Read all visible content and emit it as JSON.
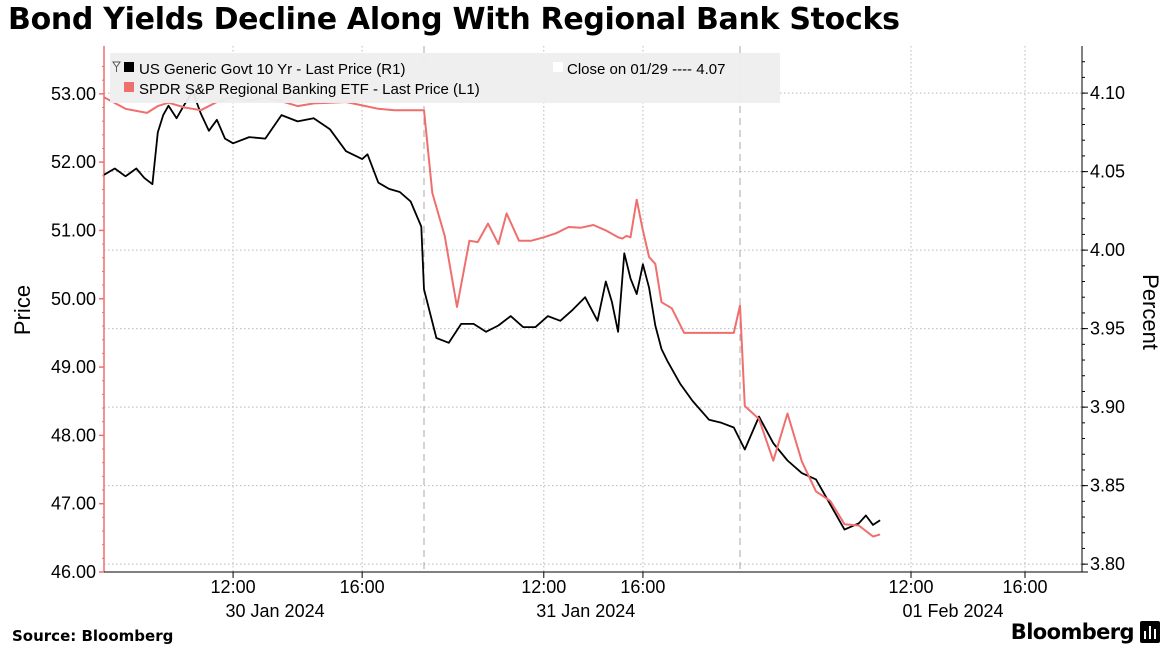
{
  "header": {
    "title": "Bond Yields Decline Along With Regional Bank Stocks"
  },
  "footer": {
    "source": "Source: Bloomberg",
    "brand": "Bloomberg"
  },
  "colors": {
    "yield_line": "#000000",
    "etf_line": "#ef6f6f",
    "grid": "#b9b9b9",
    "legend_bg": "#eeeeee"
  },
  "chart_data": {
    "type": "line",
    "title": "Bond Yields Decline Along With Regional Bank Stocks",
    "source": "Source: Bloomberg",
    "grid": true,
    "legend_position": "top-left",
    "x_axis": {
      "time_ticks": [
        "12:00",
        "16:00",
        "12:00",
        "16:00",
        "12:00",
        "16:00"
      ],
      "date_labels": [
        "30 Jan 2024",
        "31 Jan 2024",
        "01 Feb 2024"
      ]
    },
    "left_axis": {
      "label": "Price",
      "range": [
        46.0,
        53.7
      ],
      "ticks": [
        "46.00",
        "47.00",
        "48.00",
        "49.00",
        "50.00",
        "51.00",
        "52.00",
        "53.00"
      ]
    },
    "right_axis": {
      "label": "Percent",
      "range": [
        3.795,
        4.13
      ],
      "ticks": [
        "3.80",
        "3.85",
        "3.90",
        "3.95",
        "4.00",
        "4.05",
        "4.10"
      ]
    },
    "legend": [
      {
        "text": "US Generic Govt 10 Yr - Last Price (R1)",
        "color": "#000000"
      },
      {
        "text": "SPDR S&P Regional Banking ETF - Last Price (L1)",
        "color": "#ef6f6f"
      },
      {
        "text": "Close on 01/29 ---- 4.07",
        "color": "#ffffff"
      }
    ],
    "series": [
      {
        "name": "US Generic Govt 10 Yr - Last Price (R1)",
        "axis": "right",
        "x": [
          "01-30 08:00",
          "01-30 08:20",
          "01-30 08:40",
          "01-30 09:00",
          "01-30 09:15",
          "01-30 09:30",
          "01-30 09:40",
          "01-30 09:50",
          "01-30 10:00",
          "01-30 10:15",
          "01-30 10:30",
          "01-30 10:45",
          "01-30 11:00",
          "01-30 11:15",
          "01-30 11:30",
          "01-30 11:45",
          "01-30 12:00",
          "01-30 12:30",
          "01-30 13:00",
          "01-30 13:30",
          "01-30 14:00",
          "01-30 14:30",
          "01-30 15:00",
          "01-30 15:30",
          "01-30 16:00",
          "01-30 16:10",
          "01-30 16:30",
          "01-30 16:50",
          "01-30 17:10",
          "01-30 17:30",
          "01-30 17:50",
          "01-31 07:10",
          "01-31 07:40",
          "01-31 08:10",
          "01-31 08:40",
          "01-31 09:10",
          "01-31 09:40",
          "01-31 10:10",
          "01-31 10:40",
          "01-31 11:10",
          "01-31 11:40",
          "01-31 12:10",
          "01-31 12:40",
          "01-31 13:10",
          "01-31 13:40",
          "01-31 14:10",
          "01-31 14:30",
          "01-31 14:45",
          "01-31 15:00",
          "01-31 15:15",
          "01-31 15:30",
          "01-31 15:45",
          "01-31 16:00",
          "01-31 16:15",
          "01-31 16:30",
          "01-31 16:45",
          "01-31 17:00",
          "01-31 17:30",
          "01-31 18:00",
          "01-31 18:40",
          "01-31 19:10",
          "01-31 19:40",
          "02-01 06:10",
          "02-01 06:40",
          "02-01 07:10",
          "02-01 07:40",
          "02-01 08:10",
          "02-01 08:40",
          "02-01 09:10",
          "02-01 09:40",
          "02-01 10:10",
          "02-01 10:25",
          "02-01 10:40",
          "02-01 10:55"
        ],
        "values": [
          4.048,
          4.052,
          4.047,
          4.052,
          4.046,
          4.042,
          4.075,
          4.086,
          4.092,
          4.084,
          4.093,
          4.101,
          4.087,
          4.076,
          4.083,
          4.071,
          4.068,
          4.072,
          4.071,
          4.086,
          4.082,
          4.084,
          4.077,
          4.063,
          4.058,
          4.061,
          4.043,
          4.039,
          4.037,
          4.031,
          4.015,
          3.975,
          3.944,
          3.941,
          3.953,
          3.953,
          3.948,
          3.952,
          3.958,
          3.951,
          3.951,
          3.958,
          3.955,
          3.962,
          3.97,
          3.955,
          3.98,
          3.967,
          3.948,
          3.998,
          3.982,
          3.972,
          3.991,
          3.976,
          3.952,
          3.937,
          3.929,
          3.915,
          3.904,
          3.892,
          3.89,
          3.887,
          3.873,
          3.894,
          3.877,
          3.866,
          3.858,
          3.854,
          3.838,
          3.822,
          3.826,
          3.831,
          3.825,
          3.828
        ]
      },
      {
        "name": "SPDR S&P Regional Banking ETF - Last Price (L1)",
        "axis": "left",
        "x": [
          "01-30 08:00",
          "01-30 08:40",
          "01-30 09:20",
          "01-30 09:40",
          "01-30 10:00",
          "01-30 10:30",
          "01-30 11:00",
          "01-30 11:30",
          "01-30 12:00",
          "01-30 12:30",
          "01-30 13:00",
          "01-30 13:30",
          "01-30 14:00",
          "01-30 14:30",
          "01-30 15:00",
          "01-30 15:30",
          "01-30 16:00",
          "01-30 16:30",
          "01-30 17:00",
          "01-30 17:30",
          "01-30 17:55",
          "01-31 07:30",
          "01-31 08:00",
          "01-31 08:30",
          "01-31 09:00",
          "01-31 09:20",
          "01-31 09:45",
          "01-31 10:10",
          "01-31 10:30",
          "01-31 11:00",
          "01-31 11:30",
          "01-31 12:00",
          "01-31 12:30",
          "01-31 13:00",
          "01-31 13:30",
          "01-31 14:00",
          "01-31 14:30",
          "01-31 15:00",
          "01-31 15:10",
          "01-31 15:20",
          "01-31 15:30",
          "01-31 15:45",
          "01-31 16:00",
          "01-31 16:15",
          "01-31 16:30",
          "01-31 16:45",
          "01-31 17:10",
          "01-31 17:40",
          "01-31 18:10",
          "01-31 18:40",
          "01-31 19:10",
          "01-31 19:40",
          "01-31 19:55",
          "02-01 06:10",
          "02-01 06:40",
          "02-01 07:10",
          "02-01 07:40",
          "02-01 08:10",
          "02-01 08:40",
          "02-01 09:10",
          "02-01 09:40",
          "02-01 10:10",
          "02-01 10:40",
          "02-01 10:55"
        ],
        "values": [
          52.95,
          52.78,
          52.72,
          52.82,
          52.87,
          52.8,
          52.76,
          52.88,
          52.95,
          52.9,
          52.94,
          52.89,
          52.82,
          52.86,
          52.87,
          52.88,
          52.83,
          52.78,
          52.76,
          52.76,
          52.76,
          51.55,
          50.92,
          49.88,
          50.85,
          50.83,
          51.1,
          50.8,
          51.25,
          50.85,
          50.85,
          50.9,
          50.96,
          51.05,
          51.04,
          51.08,
          51.0,
          50.9,
          50.88,
          50.92,
          50.9,
          51.45,
          51.0,
          50.61,
          50.51,
          49.95,
          49.86,
          49.5,
          49.5,
          49.5,
          49.5,
          49.5,
          49.9,
          48.43,
          48.24,
          47.63,
          48.32,
          47.62,
          47.18,
          47.04,
          46.7,
          46.68,
          46.52,
          46.55
        ]
      }
    ]
  }
}
